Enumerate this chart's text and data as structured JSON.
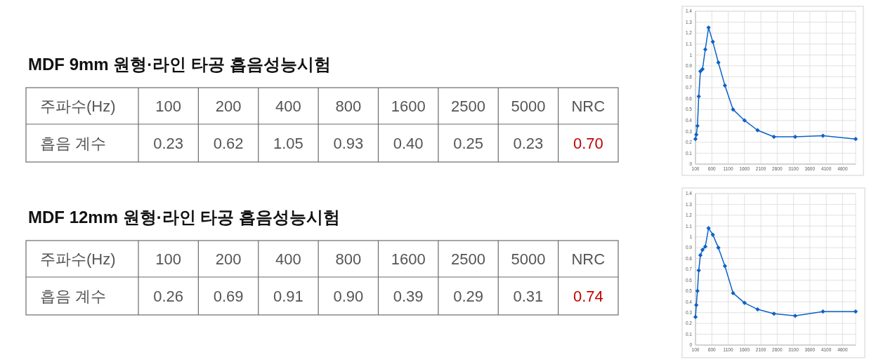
{
  "chart_data": [
    {
      "type": "other",
      "title": "MDF 9mm 원형·라인 타공 흡음성능시험",
      "xlabel": "주파수(Hz)",
      "ylabel": "흡음 계수",
      "categories": [
        "100",
        "200",
        "400",
        "800",
        "1600",
        "2500",
        "5000",
        "NRC"
      ],
      "values": [
        0.23,
        0.62,
        1.05,
        0.93,
        0.4,
        0.25,
        0.23,
        0.7
      ],
      "value_labels": [
        "0.23",
        "0.62",
        "1.05",
        "0.93",
        "0.40",
        "0.25",
        "0.23",
        "0.70"
      ],
      "colors": [
        "#555555",
        "#555555",
        "#555555",
        "#555555",
        "#555555",
        "#555555",
        "#555555",
        "#c00000"
      ]
    },
    {
      "type": "line",
      "x": [
        100,
        125,
        160,
        200,
        250,
        315,
        400,
        500,
        630,
        800,
        1000,
        1250,
        1600,
        2000,
        2500,
        3150,
        4000,
        5000
      ],
      "values": [
        0.23,
        0.27,
        0.35,
        0.62,
        0.85,
        0.87,
        1.05,
        1.25,
        1.12,
        0.93,
        0.72,
        0.5,
        0.4,
        0.31,
        0.25,
        0.25,
        0.26,
        0.23
      ],
      "color": "#0c62c7",
      "xlim": [
        100,
        5000
      ],
      "xticks": [
        100,
        600,
        1100,
        1600,
        2100,
        2600,
        3100,
        3600,
        4100,
        4600
      ],
      "ylim": [
        0,
        1.4
      ],
      "yticks": [
        0,
        0.1,
        0.2,
        0.3,
        0.4,
        0.5,
        0.6,
        0.7,
        0.8,
        0.9,
        1,
        1.1,
        1.2,
        1.3,
        1.4
      ],
      "grid": true,
      "marker": "diamond"
    },
    {
      "type": "other",
      "title": "MDF 12mm 원형·라인 타공 흡음성능시험",
      "xlabel": "주파수(Hz)",
      "ylabel": "흡음 계수",
      "categories": [
        "100",
        "200",
        "400",
        "800",
        "1600",
        "2500",
        "5000",
        "NRC"
      ],
      "values": [
        0.26,
        0.69,
        0.91,
        0.9,
        0.39,
        0.29,
        0.31,
        0.74
      ],
      "value_labels": [
        "0.26",
        "0.69",
        "0.91",
        "0.90",
        "0.39",
        "0.29",
        "0.31",
        "0.74"
      ],
      "colors": [
        "#555555",
        "#555555",
        "#555555",
        "#555555",
        "#555555",
        "#555555",
        "#555555",
        "#c00000"
      ]
    },
    {
      "type": "line",
      "x": [
        100,
        125,
        160,
        200,
        250,
        315,
        400,
        500,
        630,
        800,
        1000,
        1250,
        1600,
        2000,
        2500,
        3150,
        4000,
        5000
      ],
      "values": [
        0.26,
        0.37,
        0.5,
        0.69,
        0.83,
        0.88,
        0.91,
        1.08,
        1.02,
        0.9,
        0.73,
        0.48,
        0.39,
        0.33,
        0.29,
        0.27,
        0.31,
        0.31
      ],
      "color": "#0c62c7",
      "xlim": [
        100,
        5000
      ],
      "xticks": [
        100,
        600,
        1100,
        1600,
        2100,
        2600,
        3100,
        3600,
        4100,
        4600
      ],
      "ylim": [
        0,
        1.4
      ],
      "yticks": [
        0,
        0.1,
        0.2,
        0.3,
        0.4,
        0.5,
        0.6,
        0.7,
        0.8,
        0.9,
        1,
        1.1,
        1.2,
        1.3,
        1.4
      ],
      "grid": true,
      "marker": "diamond"
    }
  ]
}
